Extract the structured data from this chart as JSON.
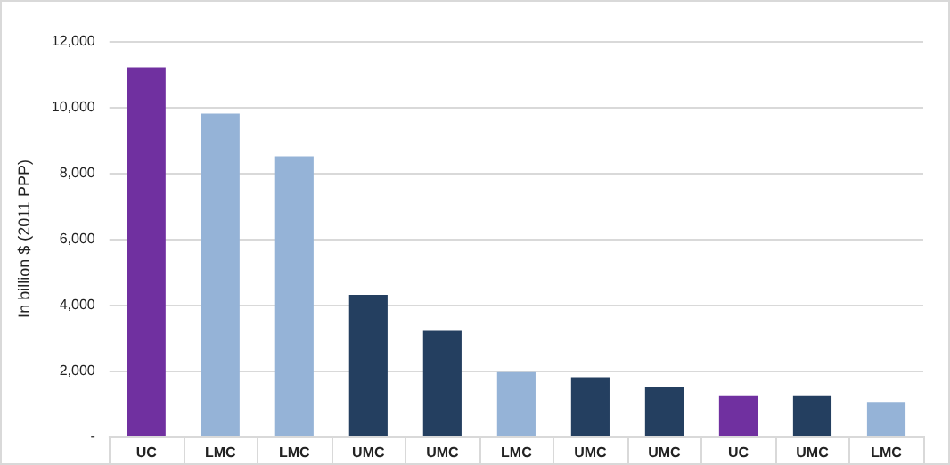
{
  "chart_data": {
    "type": "bar",
    "ylabel": "In billion $ (2011 PPP)",
    "categories": [
      "UC",
      "LMC",
      "LMC",
      "UMC",
      "UMC",
      "LMC",
      "UMC",
      "UMC",
      "UC",
      "UMC",
      "LMC"
    ],
    "values": [
      11200,
      9800,
      8500,
      4300,
      3200,
      1950,
      1800,
      1500,
      1250,
      1250,
      1050
    ],
    "colors": [
      "#7030a0",
      "#95b3d7",
      "#95b3d7",
      "#243f60",
      "#243f60",
      "#95b3d7",
      "#243f60",
      "#243f60",
      "#7030a0",
      "#243f60",
      "#95b3d7"
    ],
    "ylim": [
      0,
      12000
    ],
    "yticks": [
      {
        "value": 0,
        "label": "-"
      },
      {
        "value": 2000,
        "label": "2,000"
      },
      {
        "value": 4000,
        "label": "4,000"
      },
      {
        "value": 6000,
        "label": "6,000"
      },
      {
        "value": 8000,
        "label": "8,000"
      },
      {
        "value": 10000,
        "label": "10,000"
      },
      {
        "value": 12000,
        "label": "12,000"
      }
    ],
    "grid": "y"
  }
}
